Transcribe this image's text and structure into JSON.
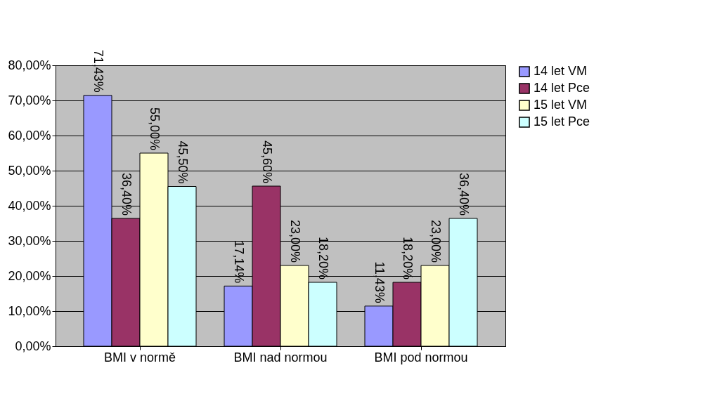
{
  "chart_data": {
    "type": "bar",
    "categories": [
      "BMI v normě",
      "BMI nad normou",
      "BMI pod normou"
    ],
    "series": [
      {
        "name": "14 let VM",
        "color": "#9999ff",
        "values": [
          71.43,
          17.14,
          11.43
        ],
        "value_labels": [
          "71,43%",
          "17,14%",
          "11,43%"
        ]
      },
      {
        "name": "14 let Pce",
        "color": "#993366",
        "values": [
          36.4,
          45.6,
          18.2
        ],
        "value_labels": [
          "36,40%",
          "45,60%",
          "18,20%"
        ]
      },
      {
        "name": "15 let VM",
        "color": "#ffffcc",
        "values": [
          55.0,
          23.0,
          23.0
        ],
        "value_labels": [
          "55,00%",
          "23,00%",
          "23,00%"
        ]
      },
      {
        "name": "15 let Pce",
        "color": "#ccffff",
        "values": [
          45.5,
          18.2,
          36.4
        ],
        "value_labels": [
          "45,50%",
          "18,20%",
          "36,40%"
        ]
      }
    ],
    "ylim": [
      0,
      80
    ],
    "yticks": [
      {
        "value": 0,
        "label": "0,00%"
      },
      {
        "value": 10,
        "label": "10,00%"
      },
      {
        "value": 20,
        "label": "20,00%"
      },
      {
        "value": 30,
        "label": "30,00%"
      },
      {
        "value": 40,
        "label": "40,00%"
      },
      {
        "value": 50,
        "label": "50,00%"
      },
      {
        "value": 60,
        "label": "60,00%"
      },
      {
        "value": 70,
        "label": "70,00%"
      },
      {
        "value": 80,
        "label": "80,00%"
      }
    ],
    "grid": "y",
    "legend": "right"
  }
}
